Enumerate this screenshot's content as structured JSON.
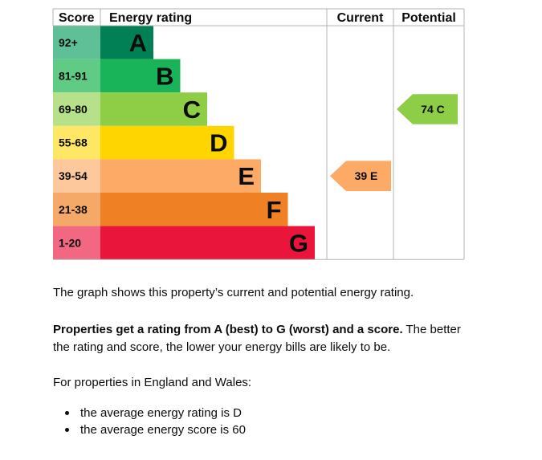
{
  "chart_data": {
    "type": "bar",
    "headers": {
      "score": "Score",
      "rating": "Energy rating",
      "current": "Current",
      "potential": "Potential"
    },
    "bands": [
      {
        "score": "92+",
        "letter": "A",
        "color": "#008054",
        "score_color": "#5fbf97"
      },
      {
        "score": "81-91",
        "letter": "B",
        "color": "#19b459",
        "score_color": "#5fcb84"
      },
      {
        "score": "69-80",
        "letter": "C",
        "color": "#8dce46",
        "score_color": "#b7e08a"
      },
      {
        "score": "55-68",
        "letter": "D",
        "color": "#ffd500",
        "score_color": "#ffe766"
      },
      {
        "score": "39-54",
        "letter": "E",
        "color": "#fcaa65",
        "score_color": "#fdc99c"
      },
      {
        "score": "21-38",
        "letter": "F",
        "color": "#ef8023",
        "score_color": "#f5a968"
      },
      {
        "score": "1-20",
        "letter": "G",
        "color": "#e9153b",
        "score_color": "#f26782"
      }
    ],
    "current": {
      "score": 39,
      "letter": "E",
      "label": "39  E",
      "color": "#fcaa65"
    },
    "potential": {
      "score": 74,
      "letter": "C",
      "label": "74  C",
      "color": "#8dce46"
    }
  },
  "text": {
    "description": "The graph shows this property’s current and potential energy rating.",
    "ratings_bold": "Properties get a rating from A (best) to G (worst) and a score.",
    "ratings_rest": " The better the rating and score, the lower your energy bills are likely to be.",
    "region_intro": "For properties in England and Wales:",
    "bullets": [
      "the average energy rating is D",
      "the average energy score is 60"
    ]
  }
}
